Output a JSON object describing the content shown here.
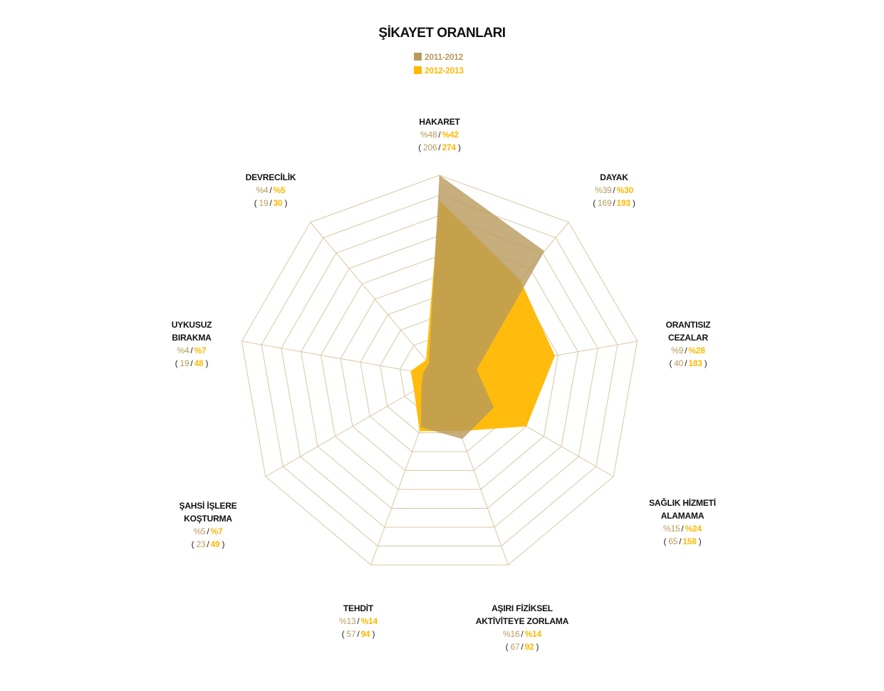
{
  "chart_data": {
    "type": "radar",
    "title": "ŞİKAYET ORANLARI",
    "rmax": 48,
    "grid_rings": 10,
    "axes": [
      {
        "name_lines": [
          "HAKARET"
        ],
        "pct": [
          "%48",
          "%42"
        ],
        "count": [
          "206",
          "274"
        ]
      },
      {
        "name_lines": [
          "DAYAK"
        ],
        "pct": [
          "%39",
          "%30"
        ],
        "count": [
          "169",
          "193"
        ]
      },
      {
        "name_lines": [
          "ORANTISIZ",
          "CEZALAR"
        ],
        "pct": [
          "%9",
          "%28"
        ],
        "count": [
          "40",
          "183"
        ]
      },
      {
        "name_lines": [
          "SAĞLIK HİZMETİ",
          "ALAMAMA"
        ],
        "pct": [
          "%15",
          "%24"
        ],
        "count": [
          "65",
          "158"
        ]
      },
      {
        "name_lines": [
          "AŞIRI FİZİKSEL",
          "AKTİVİTEYE ZORLAMA"
        ],
        "pct": [
          "%16",
          "%14"
        ],
        "count": [
          "67",
          "92"
        ]
      },
      {
        "name_lines": [
          "TEHDİT"
        ],
        "pct": [
          "%13",
          "%14"
        ],
        "count": [
          "57",
          "94"
        ]
      },
      {
        "name_lines": [
          "ŞAHSİ İŞLERE",
          "KOŞTURMA"
        ],
        "pct": [
          "%5",
          "%7"
        ],
        "count": [
          "23",
          "49"
        ]
      },
      {
        "name_lines": [
          "UYKUSUZ",
          "BIRAKMA"
        ],
        "pct": [
          "%4",
          "%7"
        ],
        "count": [
          "19",
          "48"
        ]
      },
      {
        "name_lines": [
          "DEVRECİLİK"
        ],
        "pct": [
          "%4",
          "%5"
        ],
        "count": [
          "19",
          "30"
        ]
      }
    ],
    "series": [
      {
        "name": "2011-2012",
        "color": "#b89a5c",
        "opacity": 0.8,
        "values": [
          48,
          39,
          9,
          15,
          16,
          13,
          5,
          4,
          4
        ]
      },
      {
        "name": "2012-2013",
        "color": "#ffb800",
        "opacity": 0.95,
        "values": [
          42,
          30,
          28,
          24,
          14,
          14,
          7,
          7,
          5
        ]
      }
    ],
    "grid_color": "#d9c7a1",
    "legend_position": "top-center"
  }
}
